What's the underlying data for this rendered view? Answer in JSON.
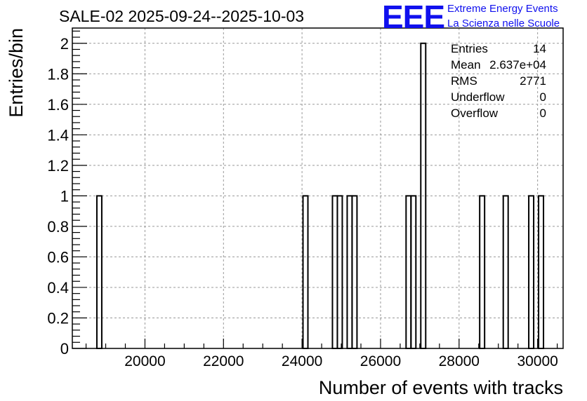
{
  "logo": {
    "text": "EEE",
    "line1": "Extreme Energy Events",
    "line2": "La Scienza nelle Scuole"
  },
  "stats": {
    "entries_label": "Entries",
    "entries_value": "14",
    "mean_label": "Mean",
    "mean_value": "2.637e+04",
    "rms_label": "RMS",
    "rms_value": "2771",
    "underflow_label": "Underflow",
    "underflow_value": "0",
    "overflow_label": "Overflow",
    "overflow_value": "0"
  },
  "chart_data": {
    "type": "histogram",
    "title": "SALE-02 2025-09-24--2025-10-03",
    "xlabel": "Number of events with tracks",
    "ylabel": "Entries/bin",
    "xlim": [
      18150,
      30650
    ],
    "ylim": [
      0,
      2.1
    ],
    "bin_width": 125,
    "xticks": [
      20000,
      22000,
      24000,
      26000,
      28000,
      30000
    ],
    "yticks": [
      0,
      0.2,
      0.4,
      0.6,
      0.8,
      1,
      1.2,
      1.4,
      1.6,
      1.8,
      2
    ],
    "ytick_labels": [
      "0",
      "0.2",
      "0.4",
      "0.6",
      "0.8",
      "1",
      "1.2",
      "1.4",
      "1.6",
      "1.8",
      "2"
    ],
    "grid": true,
    "bins": [
      {
        "x": 18775,
        "count": 1
      },
      {
        "x": 24025,
        "count": 1
      },
      {
        "x": 24775,
        "count": 1
      },
      {
        "x": 24900,
        "count": 1
      },
      {
        "x": 25150,
        "count": 1
      },
      {
        "x": 25275,
        "count": 1
      },
      {
        "x": 26650,
        "count": 1
      },
      {
        "x": 26775,
        "count": 1
      },
      {
        "x": 27025,
        "count": 2
      },
      {
        "x": 28525,
        "count": 1
      },
      {
        "x": 29125,
        "count": 1
      },
      {
        "x": 29775,
        "count": 1
      },
      {
        "x": 30025,
        "count": 1
      }
    ]
  }
}
